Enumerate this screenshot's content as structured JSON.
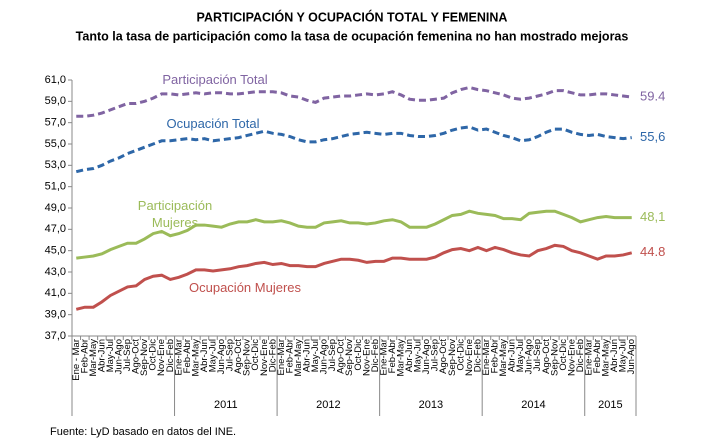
{
  "chart_data": {
    "type": "line",
    "title": "PARTICIPACIÓN Y OCUPACIÓN TOTAL Y FEMENINA",
    "subtitle": "Tanto la tasa de participación como la tasa de ocupación femenina no han mostrado mejoras",
    "source": "Fuente: LyD basado en datos del INE.",
    "categories": [
      "Ene - Mar",
      "Feb-Abr",
      "Mar-May",
      "Abr-Jun",
      "May-Jul",
      "Jun-Ago",
      "Jul-Sep",
      "Ago-Oct",
      "Sep-Nov",
      "Oct-Dic",
      "Nov-Ene",
      "Dic-Feb",
      "Ene-Mar",
      "Feb-Abr",
      "Mar-May",
      "Abr-Jun",
      "May-Jul",
      "Jun-Ago",
      "Jul-Sep",
      "Ago-Oct",
      "Sep-Nov",
      "Oct-Dic",
      "Nov-Ene",
      "Dic-Feb",
      "Ene-Mar",
      "Feb-Abr",
      "Mar-May",
      "Abr-Jun",
      "May-Jul",
      "Jun-Ago",
      "Jul-Sep",
      "Ago-Oct",
      "Sep-Nov",
      "Oct-Dic",
      "Nov-Ene",
      "Dic-Feb",
      "Ene-Mar",
      "Feb-Abr",
      "Mar-May",
      "Abr-Jun",
      "May-Jul",
      "Jun-Ago",
      "Jul-Sep",
      "Ago-Oct",
      "Sep-Nov",
      "Oct-Dic",
      "Nov-Ene",
      "Dic-Feb",
      "Ene-Mar",
      "Feb-Abr",
      "Mar-May",
      "Abr-Jun",
      "May-Jul",
      "Jun-Ago",
      "Jul-Sep",
      "Ago-Oct",
      "Sep-Nov",
      "Oct-Dic",
      "Nov-Ene",
      "Dic-Feb",
      "Ene-Mar",
      "Feb-Abr",
      "Mar-May",
      "Abr-Jun",
      "May-Jul",
      "Jun-Ago"
    ],
    "groups": [
      {
        "label": null,
        "size": 12
      },
      {
        "label": "2011",
        "size": 12
      },
      {
        "label": "2012",
        "size": 12
      },
      {
        "label": "2013",
        "size": 12
      },
      {
        "label": "2014",
        "size": 12
      },
      {
        "label": "2015",
        "size": 6
      }
    ],
    "ylim": [
      37,
      61
    ],
    "yticks": [
      {
        "value": 37,
        "label": "37,0"
      },
      {
        "value": 39,
        "label": "39,0"
      },
      {
        "value": 41,
        "label": "41,0"
      },
      {
        "value": 43,
        "label": "43,0"
      },
      {
        "value": 45,
        "label": "45,0"
      },
      {
        "value": 47,
        "label": "47,0"
      },
      {
        "value": 49,
        "label": "49,0"
      },
      {
        "value": 51,
        "label": "51,0"
      },
      {
        "value": 53,
        "label": "53,0"
      },
      {
        "value": 55,
        "label": "55,0"
      },
      {
        "value": 57,
        "label": "57,0"
      },
      {
        "value": 59,
        "label": "59,0"
      },
      {
        "value": 61,
        "label": "61,0"
      }
    ],
    "series": [
      {
        "name": "Participación Total",
        "color": "#8064a2",
        "dashed": true,
        "end_label": "59.4",
        "values": [
          57.6,
          57.6,
          57.7,
          57.9,
          58.2,
          58.5,
          58.8,
          58.8,
          59.0,
          59.3,
          59.7,
          59.7,
          59.6,
          59.7,
          59.8,
          59.7,
          59.8,
          59.8,
          59.7,
          59.7,
          59.8,
          59.9,
          59.9,
          59.9,
          59.8,
          59.5,
          59.4,
          59.1,
          58.9,
          59.3,
          59.4,
          59.5,
          59.5,
          59.6,
          59.7,
          59.6,
          59.7,
          59.9,
          59.6,
          59.2,
          59.1,
          59.1,
          59.2,
          59.3,
          59.8,
          60.1,
          60.3,
          60.1,
          60.0,
          59.8,
          59.6,
          59.3,
          59.2,
          59.3,
          59.5,
          59.7,
          60.0,
          60.0,
          59.8,
          59.6,
          59.6,
          59.7,
          59.7,
          59.6,
          59.5,
          59.4
        ]
      },
      {
        "name": "Ocupación Total",
        "color": "#2e67a8",
        "dashed": true,
        "end_label": "55,6",
        "values": [
          52.4,
          52.6,
          52.7,
          53.0,
          53.4,
          53.7,
          54.1,
          54.4,
          54.7,
          55.0,
          55.3,
          55.3,
          55.4,
          55.5,
          55.4,
          55.5,
          55.3,
          55.4,
          55.5,
          55.6,
          55.8,
          56.0,
          56.2,
          56.0,
          55.9,
          55.7,
          55.4,
          55.2,
          55.2,
          55.4,
          55.5,
          55.7,
          55.9,
          56.0,
          56.1,
          56.0,
          55.9,
          56.0,
          56.0,
          55.8,
          55.7,
          55.7,
          55.8,
          56.0,
          56.3,
          56.5,
          56.6,
          56.3,
          56.4,
          56.1,
          55.8,
          55.6,
          55.3,
          55.4,
          55.7,
          56.1,
          56.4,
          56.4,
          56.1,
          55.9,
          55.8,
          55.9,
          55.7,
          55.6,
          55.5,
          55.6
        ]
      },
      {
        "name": "Participación Mujeres",
        "color": "#9bbb59",
        "dashed": false,
        "end_label": "48,1",
        "values": [
          44.3,
          44.4,
          44.5,
          44.7,
          45.1,
          45.4,
          45.7,
          45.7,
          46.1,
          46.6,
          46.8,
          46.4,
          46.6,
          46.9,
          47.4,
          47.4,
          47.3,
          47.2,
          47.5,
          47.7,
          47.7,
          47.9,
          47.7,
          47.7,
          47.8,
          47.6,
          47.3,
          47.2,
          47.2,
          47.6,
          47.7,
          47.8,
          47.6,
          47.6,
          47.5,
          47.6,
          47.8,
          47.9,
          47.7,
          47.2,
          47.2,
          47.2,
          47.5,
          47.9,
          48.3,
          48.4,
          48.7,
          48.5,
          48.4,
          48.3,
          48.0,
          48.0,
          47.9,
          48.5,
          48.6,
          48.7,
          48.7,
          48.4,
          48.1,
          47.7,
          47.9,
          48.1,
          48.2,
          48.1,
          48.1,
          48.1
        ]
      },
      {
        "name": "Ocupación Mujeres",
        "color": "#c0504d",
        "dashed": false,
        "end_label": "44.8",
        "values": [
          39.5,
          39.7,
          39.7,
          40.2,
          40.8,
          41.2,
          41.6,
          41.7,
          42.3,
          42.6,
          42.7,
          42.3,
          42.5,
          42.8,
          43.2,
          43.2,
          43.1,
          43.2,
          43.3,
          43.5,
          43.6,
          43.8,
          43.9,
          43.7,
          43.8,
          43.6,
          43.6,
          43.5,
          43.5,
          43.8,
          44.0,
          44.2,
          44.2,
          44.1,
          43.9,
          44.0,
          44.0,
          44.3,
          44.3,
          44.2,
          44.2,
          44.2,
          44.4,
          44.8,
          45.1,
          45.2,
          45.0,
          45.3,
          45.0,
          45.3,
          45.1,
          44.8,
          44.6,
          44.5,
          45.0,
          45.2,
          45.5,
          45.4,
          45.0,
          44.8,
          44.5,
          44.2,
          44.5,
          44.5,
          44.6,
          44.8
        ]
      }
    ]
  }
}
